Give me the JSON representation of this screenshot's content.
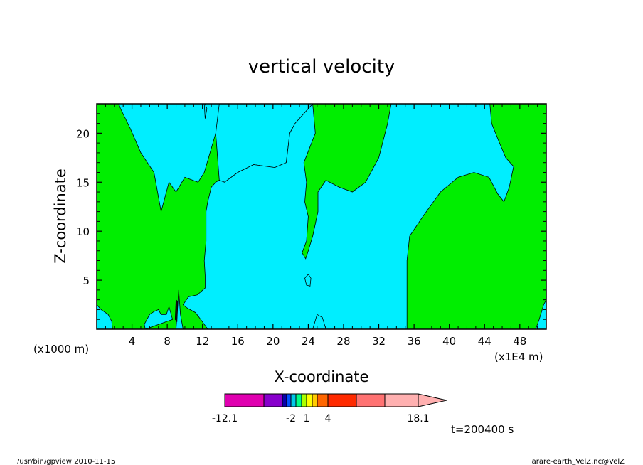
{
  "chart_data": {
    "type": "heatmap",
    "title": "vertical velocity",
    "xlabel": "X-coordinate",
    "ylabel": "Z-coordinate",
    "x_unit_label": "(x1E4 m)",
    "y_unit_label": "(x1000 m)",
    "xlim": [
      0,
      51
    ],
    "ylim": [
      0,
      23
    ],
    "x_ticks": [
      4,
      8,
      12,
      16,
      20,
      24,
      28,
      32,
      36,
      40,
      44,
      48
    ],
    "y_ticks": [
      5,
      10,
      15,
      20
    ],
    "time_label": "t=200400 s",
    "colors": {
      "background_region": "#00ee00",
      "cyan_region": "#00eeff",
      "dark_region": "#111111"
    },
    "regions": [
      {
        "color": "cyan",
        "points": [
          [
            2.5,
            23
          ],
          [
            14,
            23
          ],
          [
            13.5,
            20
          ],
          [
            12.2,
            16
          ],
          [
            11.5,
            15
          ],
          [
            10,
            15.5
          ],
          [
            9,
            14
          ],
          [
            8.2,
            15
          ],
          [
            7.3,
            12
          ],
          [
            6.5,
            16
          ],
          [
            5,
            18
          ],
          [
            3.8,
            20.5
          ],
          [
            2.7,
            22.5
          ]
        ]
      },
      {
        "color": "cyan",
        "points": [
          [
            12.3,
            23
          ],
          [
            12.5,
            22.5
          ],
          [
            12.3,
            21.5
          ],
          [
            12.2,
            23
          ]
        ]
      },
      {
        "color": "cyan",
        "points": [
          [
            12.3,
            23
          ],
          [
            24.5,
            23
          ],
          [
            22.5,
            21
          ],
          [
            21.9,
            20
          ],
          [
            21.5,
            17
          ],
          [
            20.2,
            16.5
          ],
          [
            17.8,
            16.8
          ],
          [
            16,
            16
          ],
          [
            14.5,
            15
          ],
          [
            13.9,
            15.2
          ],
          [
            13.5,
            20
          ],
          [
            13.9,
            23
          ]
        ]
      },
      {
        "color": "cyan",
        "points": [
          [
            13.9,
            15.2
          ],
          [
            14.5,
            15
          ],
          [
            16,
            16
          ],
          [
            17.8,
            16.8
          ],
          [
            20.2,
            16.5
          ],
          [
            21.5,
            17
          ],
          [
            21.9,
            20
          ],
          [
            22.5,
            21
          ],
          [
            24.5,
            23
          ],
          [
            24.8,
            20
          ],
          [
            23.5,
            17
          ],
          [
            23.8,
            15
          ],
          [
            23.6,
            13
          ],
          [
            24,
            11.5
          ],
          [
            23.8,
            9
          ],
          [
            23.3,
            7.8
          ],
          [
            23.7,
            7.2
          ],
          [
            24,
            8
          ],
          [
            24.5,
            9.5
          ],
          [
            25.1,
            12
          ],
          [
            25.1,
            14
          ],
          [
            26,
            15.2
          ],
          [
            27.5,
            14.5
          ],
          [
            29,
            14
          ],
          [
            30.5,
            15
          ],
          [
            32,
            17.5
          ],
          [
            33,
            21
          ],
          [
            33.4,
            23
          ],
          [
            44.6,
            23
          ],
          [
            44.8,
            21
          ],
          [
            45.7,
            19
          ],
          [
            46.4,
            17.5
          ],
          [
            47.3,
            16.6
          ],
          [
            46.8,
            14.5
          ],
          [
            46.2,
            13
          ],
          [
            45.5,
            13.8
          ],
          [
            44.5,
            15.5
          ],
          [
            42.8,
            16
          ],
          [
            41,
            15.5
          ],
          [
            39,
            14
          ],
          [
            37,
            11.5
          ],
          [
            35.5,
            9.5
          ],
          [
            35.2,
            7
          ],
          [
            35.2,
            0
          ],
          [
            34.5,
            0
          ],
          [
            26,
            0
          ],
          [
            25.5,
            0.5
          ],
          [
            24.9,
            0.5
          ],
          [
            24.5,
            0
          ],
          [
            13,
            0
          ],
          [
            12.6,
            0
          ],
          [
            11.8,
            1
          ],
          [
            11.2,
            1.7
          ],
          [
            10.2,
            2.2
          ],
          [
            9.8,
            2.5
          ],
          [
            10.4,
            3.3
          ],
          [
            11.4,
            3.5
          ],
          [
            12.3,
            4.2
          ],
          [
            12.3,
            5.5
          ],
          [
            12.2,
            7
          ],
          [
            12.4,
            9
          ],
          [
            12.4,
            12
          ],
          [
            12.6,
            13
          ],
          [
            13,
            14.5
          ],
          [
            13.5,
            15
          ]
        ]
      },
      {
        "color": "cyan",
        "points": [
          [
            23.8,
            4.5
          ],
          [
            24.2,
            4.4
          ],
          [
            24.3,
            5.2
          ],
          [
            24,
            5.6
          ],
          [
            23.6,
            5.2
          ]
        ]
      },
      {
        "color": "cyan",
        "points": [
          [
            24.5,
            0
          ],
          [
            26,
            0
          ],
          [
            25.6,
            1.2
          ],
          [
            25,
            1.5
          ],
          [
            24.7,
            0.6
          ]
        ]
      },
      {
        "color": "cyan",
        "points": [
          [
            0,
            0
          ],
          [
            0,
            2.5
          ],
          [
            0.5,
            2
          ],
          [
            1.3,
            1.5
          ],
          [
            1.7,
            0.8
          ],
          [
            1.8,
            0
          ]
        ]
      },
      {
        "color": "cyan",
        "points": [
          [
            5.5,
            0
          ],
          [
            5.4,
            0.5
          ],
          [
            6,
            1.5
          ],
          [
            6.5,
            1.8
          ],
          [
            7,
            2
          ],
          [
            7.3,
            1.5
          ],
          [
            7.9,
            1.5
          ],
          [
            8.2,
            2.3
          ],
          [
            8.6,
            1
          ]
        ]
      },
      {
        "color": "cyan",
        "points": [
          [
            9,
            0
          ],
          [
            9.2,
            2.5
          ],
          [
            9.3,
            4
          ],
          [
            9.5,
            1.5
          ],
          [
            9.8,
            0
          ]
        ]
      },
      {
        "color": "cyan",
        "points": [
          [
            49.8,
            0
          ],
          [
            50.2,
            1
          ],
          [
            50.7,
            2.5
          ],
          [
            51,
            3
          ],
          [
            51,
            0
          ]
        ]
      },
      {
        "color": "dark",
        "points": [
          [
            8.9,
            1
          ],
          [
            9,
            3
          ],
          [
            9.2,
            2.8
          ],
          [
            9.1,
            0.8
          ]
        ]
      }
    ],
    "colorbar": {
      "tick_labels": [
        "-12.1",
        "-2",
        "1",
        "4",
        "18.1"
      ],
      "colors": [
        "#e000b0",
        "#8800cc",
        "#0a00aa",
        "#0050ff",
        "#00c8e8",
        "#00ff88",
        "#aaff00",
        "#ffff00",
        "#ffcc00",
        "#ff6600",
        "#ff2a00",
        "#ff7272",
        "#ffb0b0"
      ],
      "boundaries": [
        -12.1,
        -7,
        -2,
        -1.5,
        -1,
        -0.5,
        0,
        0.5,
        1,
        2,
        4,
        8,
        12,
        18.1
      ]
    }
  },
  "footer": {
    "left": "/usr/bin/gpview   2010-11-15",
    "right": "arare-earth_VelZ.nc@VelZ"
  }
}
